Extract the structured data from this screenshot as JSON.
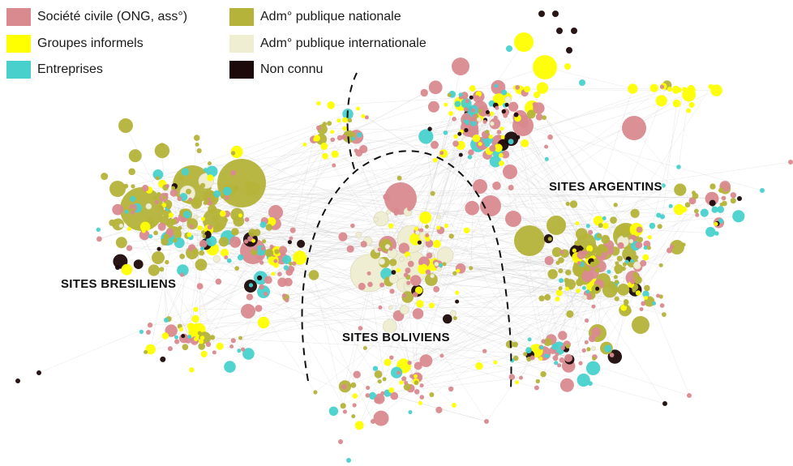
{
  "legend": {
    "items": [
      {
        "label": "Société civile (ONG, ass°)",
        "color": "#d98a8f"
      },
      {
        "label": "Groupes informels",
        "color": "#ffff00"
      },
      {
        "label": "Entreprises",
        "color": "#48d1cc"
      },
      {
        "label": "Adm° publique nationale",
        "color": "#b5b339"
      },
      {
        "label": "Adm° publique internationale",
        "color": "#efedd2"
      },
      {
        "label": "Non connu",
        "color": "#1c0a0a"
      }
    ]
  },
  "regions": {
    "bresil": "SITES BRESILIENS",
    "bolivie": "SITES BOLIVIENS",
    "argentine": "SITES ARGENTINS"
  }
}
